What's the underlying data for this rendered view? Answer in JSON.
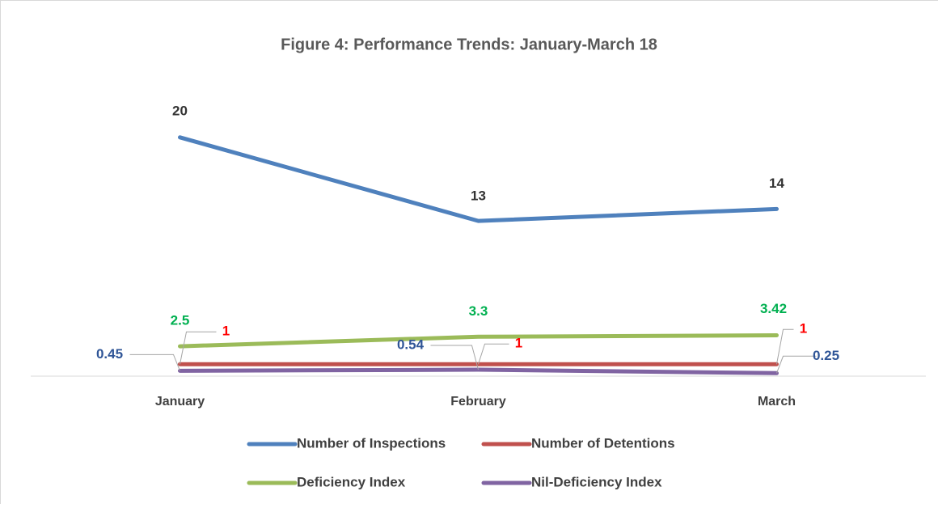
{
  "chart_data": {
    "type": "line",
    "title": "Figure 4: Performance Trends: January-March 18",
    "categories": [
      "January",
      "February",
      "March"
    ],
    "series": [
      {
        "name": "Number of Inspections",
        "color": "#4f81bd",
        "label_color": "#333333",
        "values": [
          20,
          13,
          14
        ]
      },
      {
        "name": "Number of Detentions",
        "color": "#c0504d",
        "label_color": "#ff0000",
        "values": [
          1,
          1,
          1
        ]
      },
      {
        "name": "Deficiency Index",
        "color": "#9bbb59",
        "label_color": "#00b050",
        "values": [
          2.5,
          3.3,
          3.42
        ]
      },
      {
        "name": "Nil-Deficiency Index",
        "color": "#8064a2",
        "label_color": "#2f5597",
        "values": [
          0.45,
          0.54,
          0.25
        ]
      }
    ],
    "ylim": [
      0,
      25
    ],
    "grid": false,
    "legend": "bottom"
  }
}
